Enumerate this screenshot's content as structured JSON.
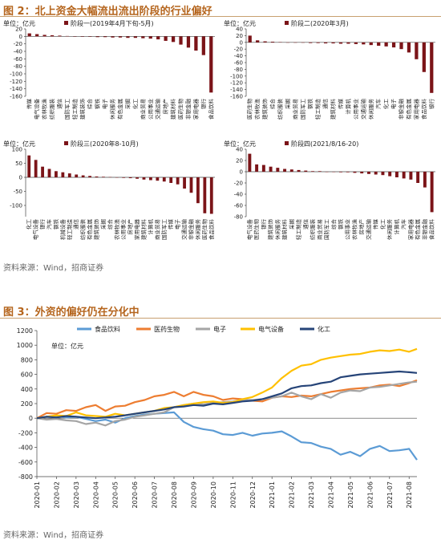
{
  "figure2": {
    "title": "图 2：北上资金大幅流出流出阶段的行业偏好",
    "source": "资料来源：Wind，招商证券",
    "bar_color": "#7b1418",
    "chart_data": [
      {
        "type": "bar",
        "legend": "阶段一(2019年4月下旬-5月)",
        "unit": "单位：亿元",
        "ylim": [
          -160,
          20
        ],
        "yticks": [
          20,
          0,
          -20,
          -40,
          -60,
          -80,
          -100,
          -120,
          -140,
          -160
        ],
        "categories": [
          "传媒",
          "电气设备",
          "农林牧渔",
          "纺织服装",
          "通信",
          "国防军工",
          "轻工制造",
          "建筑装饰",
          "综合",
          "钢铁",
          "电子",
          "休闲服务",
          "有色金属",
          "采掘",
          "化工",
          "商业贸易",
          "公用事业",
          "交通运输",
          "房地产",
          "建筑材料",
          "医药生物",
          "非银金融",
          "家用电器",
          "银行",
          "食品饮料"
        ],
        "values": [
          8,
          6,
          4,
          3,
          2,
          1,
          0,
          -1,
          -1,
          -2,
          -2,
          -3,
          -3,
          -4,
          -4,
          -5,
          -6,
          -8,
          -12,
          -15,
          -22,
          -30,
          -38,
          -50,
          -150
        ]
      },
      {
        "type": "bar",
        "legend": "阶段二(2020年3月)",
        "unit": "单位：亿元",
        "ylim": [
          -160,
          40
        ],
        "yticks": [
          40,
          20,
          0,
          -20,
          -40,
          -60,
          -80,
          -100,
          -120,
          -140,
          -160
        ],
        "categories": [
          "医药生物",
          "农林牧渔",
          "建筑装饰",
          "综合",
          "纺织服装",
          "采掘",
          "商业贸易",
          "国防军工",
          "钢铁",
          "轻工制造",
          "通信",
          "建筑材料",
          "传媒",
          "计算机",
          "公用事业",
          "交通运输",
          "休闲服务",
          "汽车",
          "化工",
          "电子",
          "非银金融",
          "有色金属",
          "家用电器",
          "食品饮料",
          "银行"
        ],
        "values": [
          20,
          6,
          3,
          2,
          1,
          0,
          -1,
          -1,
          -2,
          -2,
          -3,
          -3,
          -4,
          -4,
          -5,
          -6,
          -8,
          -10,
          -12,
          -15,
          -20,
          -30,
          -50,
          -88,
          -150
        ]
      },
      {
        "type": "bar",
        "legend": "阶段三(2020年8-10月)",
        "unit": "单位：亿元",
        "ylim": [
          -140,
          100
        ],
        "yticks": [
          100,
          50,
          0,
          -50,
          -100
        ],
        "categories": [
          "化工",
          "电气设备",
          "银行",
          "汽车",
          "钢铁",
          "机械设备",
          "轻工制造",
          "通信",
          "纺织服装",
          "有色金属",
          "建筑装饰",
          "采掘",
          "综合",
          "农林牧渔",
          "公用事业",
          "房地产",
          "家用电器",
          "建筑材料",
          "计算机",
          "商业贸易",
          "国防军工",
          "传媒",
          "电子",
          "交通运输",
          "非银金融",
          "休闲服务",
          "医药生物",
          "食品饮料"
        ],
        "values": [
          78,
          62,
          38,
          30,
          22,
          18,
          14,
          10,
          7,
          5,
          3,
          2,
          1,
          0,
          -2,
          -3,
          -5,
          -8,
          -10,
          -12,
          -15,
          -20,
          -25,
          -40,
          -55,
          -92,
          -128,
          -130
        ]
      },
      {
        "type": "bar",
        "legend": "阶段四(2021/8/16-20)",
        "unit": "单位：亿元",
        "ylim": [
          -80,
          40
        ],
        "yticks": [
          40,
          20,
          0,
          -20,
          -40,
          -60,
          -80
        ],
        "categories": [
          "电气设备",
          "医药生物",
          "银行",
          "建筑装饰",
          "休闲服务",
          "建筑材料",
          "采掘",
          "轻工制造",
          "通信",
          "纺织服装",
          "商业贸易",
          "国防军工",
          "综合",
          "钢铁",
          "公用事业",
          "农林牧渔",
          "房地产",
          "交通运输",
          "传媒",
          "化工",
          "休闲服务",
          "计算机",
          "汽车",
          "家用电器",
          "有色金属",
          "非银金融",
          "食品饮料"
        ],
        "values": [
          32,
          13,
          12,
          9,
          7,
          5,
          4,
          3,
          2,
          1,
          1,
          0,
          0,
          -1,
          -1,
          -2,
          -3,
          -4,
          -5,
          -6,
          -8,
          -10,
          -12,
          -14,
          -20,
          -28,
          -72
        ]
      }
    ]
  },
  "figure3": {
    "title": "图 3：外资的偏好仍在分化中",
    "source": "资料来源：Wind，招商证券",
    "chart_data": {
      "type": "line",
      "unit": "单位：亿元",
      "ylim": [
        -800,
        1200
      ],
      "yticks": [
        1200,
        1000,
        800,
        600,
        400,
        200,
        0,
        -200,
        -400,
        -600,
        -800
      ],
      "x_ticks": [
        "2020-01",
        "2020-02",
        "2020-03",
        "2020-04",
        "2020-05",
        "2020-06",
        "2020-07",
        "2020-08",
        "2020-09",
        "2020-10",
        "2020-11",
        "2020-12",
        "2021-01",
        "2021-02",
        "2021-03",
        "2021-04",
        "2021-05",
        "2021-06",
        "2021-07",
        "2021-08"
      ],
      "x_range": [
        0,
        19.4
      ],
      "series": [
        {
          "name": "食品饮料",
          "color": "#5b9bd5",
          "x": [
            0,
            0.5,
            1,
            1.5,
            2,
            2.5,
            3,
            3.5,
            4,
            4.5,
            5,
            5.5,
            6,
            6.5,
            7,
            7.5,
            8,
            8.5,
            9,
            9.5,
            10,
            10.5,
            11,
            11.5,
            12,
            12.5,
            13,
            13.5,
            14,
            14.5,
            15,
            15.5,
            16,
            16.5,
            17,
            17.5,
            18,
            18.5,
            19,
            19.4
          ],
          "y": [
            0,
            20,
            30,
            10,
            20,
            -10,
            -40,
            -20,
            -60,
            0,
            30,
            50,
            60,
            70,
            80,
            -50,
            -120,
            -150,
            -170,
            -220,
            -230,
            -200,
            -240,
            -210,
            -200,
            -180,
            -250,
            -330,
            -340,
            -390,
            -420,
            -500,
            -460,
            -520,
            -420,
            -380,
            -450,
            -440,
            -420,
            -570
          ]
        },
        {
          "name": "医药生物",
          "color": "#ed7d31",
          "x": [
            0,
            0.5,
            1,
            1.5,
            2,
            2.5,
            3,
            3.5,
            4,
            4.5,
            5,
            5.5,
            6,
            6.5,
            7,
            7.5,
            8,
            8.5,
            9,
            9.5,
            10,
            10.5,
            11,
            11.5,
            12,
            12.5,
            13,
            13.5,
            14,
            14.5,
            15,
            15.5,
            16,
            16.5,
            17,
            17.5,
            18,
            18.5,
            19,
            19.4
          ],
          "y": [
            0,
            70,
            60,
            110,
            100,
            150,
            180,
            100,
            160,
            170,
            220,
            250,
            300,
            320,
            360,
            300,
            360,
            320,
            300,
            250,
            270,
            260,
            240,
            230,
            280,
            300,
            290,
            310,
            300,
            330,
            360,
            380,
            400,
            410,
            420,
            450,
            460,
            440,
            480,
            520
          ]
        },
        {
          "name": "电子",
          "color": "#a5a5a5",
          "x": [
            0,
            0.5,
            1,
            1.5,
            2,
            2.5,
            3,
            3.5,
            4,
            4.5,
            5,
            5.5,
            6,
            6.5,
            7,
            7.5,
            8,
            8.5,
            9,
            9.5,
            10,
            10.5,
            11,
            11.5,
            12,
            12.5,
            13,
            13.5,
            14,
            14.5,
            15,
            15.5,
            16,
            16.5,
            17,
            17.5,
            18,
            18.5,
            19,
            19.4
          ],
          "y": [
            0,
            -20,
            -10,
            -30,
            -40,
            -80,
            -60,
            -100,
            -40,
            -20,
            20,
            40,
            60,
            80,
            150,
            180,
            200,
            190,
            210,
            220,
            230,
            250,
            250,
            260,
            280,
            300,
            350,
            300,
            260,
            330,
            280,
            350,
            380,
            370,
            420,
            430,
            450,
            470,
            490,
            500
          ]
        },
        {
          "name": "电气设备",
          "color": "#ffc000",
          "x": [
            0,
            0.5,
            1,
            1.5,
            2,
            2.5,
            3,
            3.5,
            4,
            4.5,
            5,
            5.5,
            6,
            6.5,
            7,
            7.5,
            8,
            8.5,
            9,
            9.5,
            10,
            10.5,
            11,
            11.5,
            12,
            12.5,
            13,
            13.5,
            14,
            14.5,
            15,
            15.5,
            16,
            16.5,
            17,
            17.5,
            18,
            18.5,
            19,
            19.4
          ],
          "y": [
            0,
            20,
            40,
            30,
            80,
            40,
            30,
            20,
            60,
            40,
            60,
            80,
            100,
            140,
            150,
            180,
            200,
            220,
            230,
            210,
            220,
            260,
            290,
            350,
            420,
            550,
            650,
            720,
            740,
            800,
            830,
            850,
            870,
            880,
            910,
            930,
            920,
            940,
            910,
            950
          ]
        },
        {
          "name": "化工",
          "color": "#264478",
          "x": [
            0,
            0.5,
            1,
            1.5,
            2,
            2.5,
            3,
            3.5,
            4,
            4.5,
            5,
            5.5,
            6,
            6.5,
            7,
            7.5,
            8,
            8.5,
            9,
            9.5,
            10,
            10.5,
            11,
            11.5,
            12,
            12.5,
            13,
            13.5,
            14,
            14.5,
            15,
            15.5,
            16,
            16.5,
            17,
            17.5,
            18,
            18.5,
            19,
            19.4
          ],
          "y": [
            0,
            20,
            10,
            30,
            20,
            10,
            0,
            10,
            20,
            40,
            60,
            80,
            100,
            120,
            150,
            160,
            180,
            170,
            200,
            190,
            210,
            230,
            240,
            260,
            300,
            340,
            410,
            440,
            450,
            480,
            500,
            560,
            580,
            600,
            610,
            620,
            630,
            640,
            630,
            620
          ]
        }
      ]
    }
  }
}
